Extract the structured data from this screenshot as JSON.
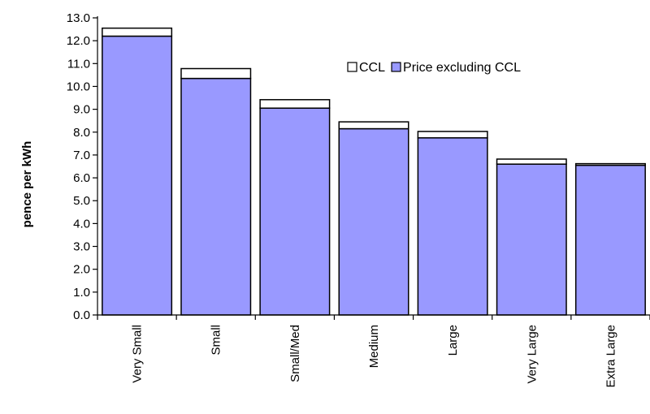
{
  "chart_data": {
    "type": "bar",
    "stacked": true,
    "title": "",
    "xlabel": "",
    "ylabel": "pence per kWh",
    "ylim": [
      0,
      13
    ],
    "ytick_step": 1,
    "ytick_format": "0.0",
    "grid": false,
    "legend_position": "top-right",
    "categories": [
      "Very Small",
      "Small",
      "Small/Med",
      "Medium",
      "Large",
      "Very Large",
      "Extra Large"
    ],
    "series": [
      {
        "name": "Price excluding CCL",
        "color": "#9999ff",
        "values": [
          12.2,
          10.35,
          9.05,
          8.15,
          7.75,
          6.6,
          6.55
        ]
      },
      {
        "name": "CCL",
        "color": "#ffffff",
        "values": [
          0.35,
          0.43,
          0.37,
          0.3,
          0.28,
          0.22,
          0.07
        ]
      }
    ]
  }
}
